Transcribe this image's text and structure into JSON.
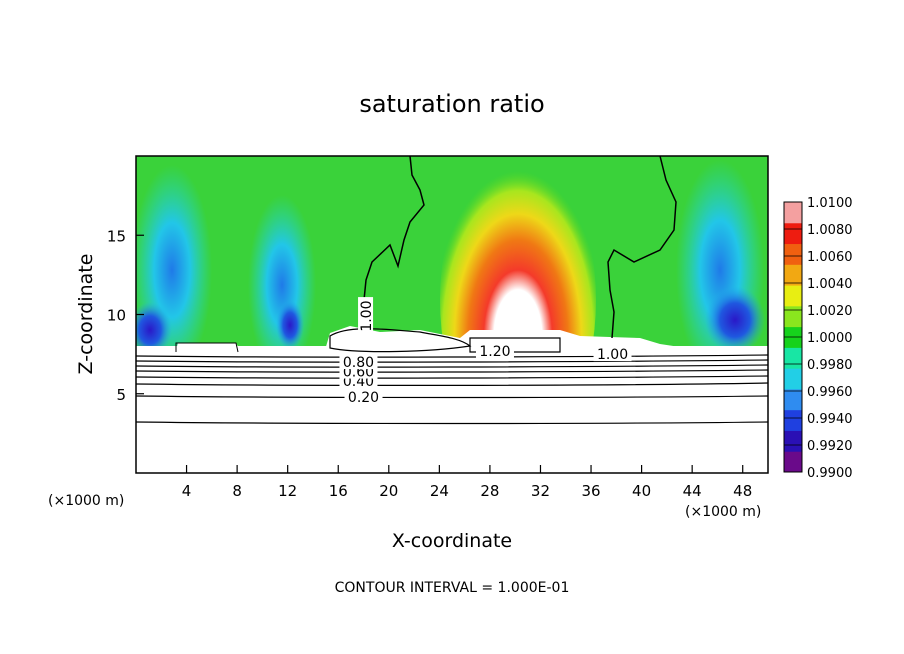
{
  "chart_data": {
    "type": "heatmap",
    "title": "saturation ratio",
    "xlabel": "X-coordinate",
    "ylabel": "Z-coordinate",
    "x_unit_left": "(×1000 m)",
    "x_unit_right": "(×1000 m)",
    "xlim": [
      0,
      50
    ],
    "ylim": [
      0,
      20
    ],
    "x_ticks": [
      {
        "value": 4,
        "label": "4"
      },
      {
        "value": 8,
        "label": "8"
      },
      {
        "value": 12,
        "label": "12"
      },
      {
        "value": 16,
        "label": "16"
      },
      {
        "value": 20,
        "label": "20"
      },
      {
        "value": 24,
        "label": "24"
      },
      {
        "value": 28,
        "label": "28"
      },
      {
        "value": 32,
        "label": "32"
      },
      {
        "value": 36,
        "label": "36"
      },
      {
        "value": 40,
        "label": "40"
      },
      {
        "value": 44,
        "label": "44"
      },
      {
        "value": 48,
        "label": "48"
      }
    ],
    "y_ticks": [
      {
        "value": 5,
        "label": "5"
      },
      {
        "value": 10,
        "label": "10"
      },
      {
        "value": 15,
        "label": "15"
      }
    ],
    "colorbar": {
      "min": 0.99,
      "max": 1.01,
      "levels": [
        {
          "value": 1.01,
          "label": "1.0100"
        },
        {
          "value": 1.008,
          "label": "1.0080"
        },
        {
          "value": 1.006,
          "label": "1.0060"
        },
        {
          "value": 1.004,
          "label": "1.0040"
        },
        {
          "value": 1.002,
          "label": "1.0020"
        },
        {
          "value": 1.0,
          "label": "1.0000"
        },
        {
          "value": 0.998,
          "label": "0.9980"
        },
        {
          "value": 0.996,
          "label": "0.9960"
        },
        {
          "value": 0.994,
          "label": "0.9940"
        },
        {
          "value": 0.992,
          "label": "0.9920"
        },
        {
          "value": 0.99,
          "label": "0.9900"
        }
      ],
      "colors": [
        "#6a0a8a",
        "#2a10b4",
        "#1f40e0",
        "#2f8cf0",
        "#22cfe6",
        "#18e6a4",
        "#16d21c",
        "#8ae61e",
        "#e8ee12",
        "#f2a812",
        "#f06010",
        "#ee1c10",
        "#f4a0a0"
      ]
    },
    "contours": [
      {
        "label": "0.20",
        "z": 4.8,
        "label_x": 18.0
      },
      {
        "label": "0.40",
        "z": 5.8,
        "label_x": 17.6
      },
      {
        "label": "0.60",
        "z": 6.4,
        "label_x": 17.6
      },
      {
        "label": "0.80",
        "z": 7.0,
        "label_x": 17.6
      },
      {
        "label": "1.20",
        "z": 7.7,
        "label_x": 28.4
      },
      {
        "label": "1.00",
        "z": 9.9,
        "label_x": 18.2
      },
      {
        "label": "1.00",
        "z": 7.5,
        "label_x": 37.7
      }
    ],
    "contour_interval_text": "CONTOUR INTERVAL = 1.000E-01"
  }
}
